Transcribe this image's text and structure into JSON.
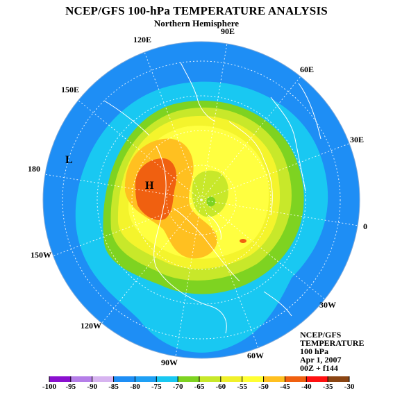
{
  "header": {
    "title": "NCEP/GFS 100-hPa TEMPERATURE ANALYSIS",
    "subtitle": "Northern Hemisphere"
  },
  "longitude_labels": [
    "90E",
    "60E",
    "30E",
    "0",
    "30W",
    "60W",
    "90W",
    "120W",
    "150W",
    "180",
    "150E",
    "120E"
  ],
  "markers": {
    "low": "L",
    "high": "H"
  },
  "info_box": {
    "line1": "NCEP/GFS",
    "line2": "TEMPERATURE",
    "line3": "100 hPa",
    "line4": "Apr 1, 2007",
    "line5": "00Z + f144"
  },
  "colorbar": {
    "ticks": [
      "-100",
      "-95",
      "-90",
      "-85",
      "-80",
      "-75",
      "-70",
      "-65",
      "-60",
      "-55",
      "-50",
      "-45",
      "-40",
      "-35",
      "-30"
    ],
    "colors": [
      "#8a10cf",
      "#b57ee8",
      "#d7b4f0",
      "#1e8ef5",
      "#1ea0f5",
      "#19c8f2",
      "#7ed321",
      "#c8e82a",
      "#f0f02a",
      "#ffff33",
      "#ffc020",
      "#f06010",
      "#ff1010",
      "#8b4513",
      "#888888"
    ]
  },
  "colors": {
    "ocean_deep": "#1e8ef5",
    "band_cyan": "#19c8f2",
    "band_green": "#7ed321",
    "band_lime": "#c8e82a",
    "band_yellow": "#f4f42c",
    "band_lightyellow": "#ffff40",
    "band_orange": "#ffc020",
    "band_red": "#f06010"
  }
}
